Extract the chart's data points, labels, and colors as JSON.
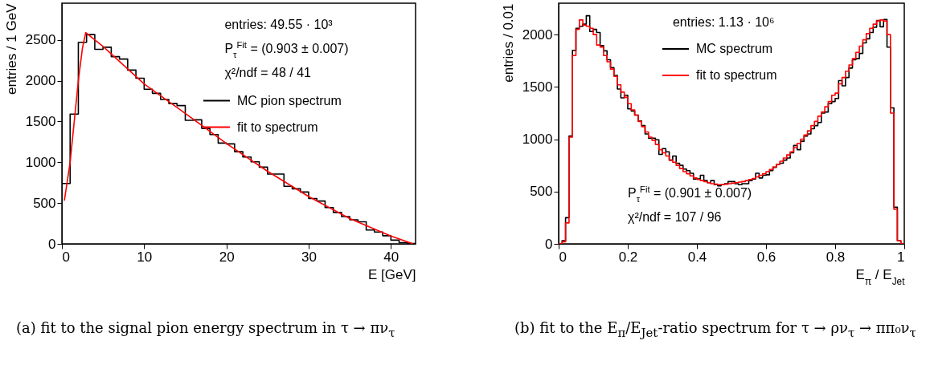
{
  "chart_data": [
    {
      "type": "histogram",
      "xlabel": "E [GeV]",
      "ylabel": "entries / 1 GeV",
      "bins": [
        0,
        1,
        2,
        3,
        4,
        5,
        6,
        7,
        8,
        9,
        10,
        11,
        12,
        13,
        14,
        15,
        16,
        17,
        18,
        19,
        20,
        21,
        22,
        23,
        24,
        25,
        26,
        27,
        28,
        29,
        30,
        31,
        32,
        33,
        34,
        35,
        36,
        37,
        38,
        39,
        40,
        41,
        42,
        43
      ],
      "series": [
        {
          "name": "MC pion spectrum",
          "color": "#000000",
          "values": [
            740,
            1590,
            2470,
            2565,
            2385,
            2410,
            2295,
            2265,
            2130,
            2030,
            1895,
            1845,
            1770,
            1720,
            1695,
            1515,
            1520,
            1415,
            1340,
            1235,
            1225,
            1130,
            1065,
            1005,
            940,
            855,
            855,
            705,
            675,
            635,
            555,
            525,
            445,
            385,
            335,
            295,
            270,
            170,
            145,
            100,
            45,
            15,
            5
          ]
        },
        {
          "name": "fit to spectrum",
          "color": "#ff0000",
          "type": "line",
          "x": [
            0.3,
            1,
            2,
            2.5,
            2.9,
            5,
            10,
            15,
            20,
            25,
            30,
            35,
            40,
            42.7
          ],
          "values": [
            530,
            1000,
            2000,
            2400,
            2590,
            2420,
            1960,
            1600,
            1230,
            890,
            580,
            310,
            95,
            0
          ]
        }
      ],
      "xlim": [
        0,
        43
      ],
      "ylim": [
        0,
        2950
      ],
      "xticks": [
        0,
        10,
        20,
        30,
        40
      ],
      "yticks": [
        0,
        500,
        1000,
        1500,
        2000,
        2500
      ],
      "grid": false,
      "legend": "top right",
      "annotations": [
        "entries: 49.55 · 10³",
        "P$_{τ}$$^{Fit}$ = (0.903 ± 0.007)",
        "χ²/ndf =   48 /   41",
        "(a) fit to the signal pion energy spectrum in τ → πν$_{τ}$"
      ]
    },
    {
      "type": "histogram",
      "xlabel": "E$_{π}$ / E$_{Jet}$",
      "ylabel": "entries / 0.01",
      "bins": [
        0,
        0.01,
        0.02,
        0.03,
        0.04,
        0.05,
        0.06,
        0.07,
        0.08,
        0.09,
        0.1,
        0.11,
        0.12,
        0.13,
        0.14,
        0.15,
        0.16,
        0.17,
        0.18,
        0.19,
        0.2,
        0.21,
        0.22,
        0.23,
        0.24,
        0.25,
        0.26,
        0.27,
        0.28,
        0.29,
        0.3,
        0.31,
        0.32,
        0.33,
        0.34,
        0.35,
        0.36,
        0.37,
        0.38,
        0.39,
        0.4,
        0.41,
        0.42,
        0.43,
        0.44,
        0.45,
        0.46,
        0.47,
        0.48,
        0.49,
        0.5,
        0.51,
        0.52,
        0.53,
        0.54,
        0.55,
        0.56,
        0.57,
        0.58,
        0.59,
        0.6,
        0.61,
        0.62,
        0.63,
        0.64,
        0.65,
        0.66,
        0.67,
        0.68,
        0.69,
        0.7,
        0.71,
        0.72,
        0.73,
        0.74,
        0.75,
        0.76,
        0.77,
        0.78,
        0.79,
        0.8,
        0.81,
        0.82,
        0.83,
        0.84,
        0.85,
        0.86,
        0.87,
        0.88,
        0.89,
        0.9,
        0.91,
        0.92,
        0.93,
        0.94,
        0.95,
        0.96,
        0.97,
        0.98,
        0.99,
        1
      ],
      "series": [
        {
          "name": "MC spectrum",
          "color": "#000000",
          "values": [
            0,
            30,
            250,
            1030,
            1850,
            2060,
            2080,
            2100,
            2180,
            2030,
            2050,
            2020,
            1895,
            1845,
            1760,
            1685,
            1610,
            1480,
            1395,
            1420,
            1290,
            1270,
            1230,
            1175,
            1130,
            1050,
            1010,
            1010,
            995,
            855,
            910,
            880,
            800,
            840,
            770,
            750,
            715,
            700,
            675,
            620,
            620,
            655,
            605,
            585,
            605,
            565,
            555,
            565,
            575,
            595,
            595,
            575,
            565,
            575,
            575,
            605,
            620,
            675,
            630,
            655,
            660,
            700,
            730,
            760,
            770,
            800,
            820,
            870,
            940,
            900,
            980,
            1030,
            1050,
            1100,
            1130,
            1160,
            1250,
            1260,
            1340,
            1360,
            1390,
            1560,
            1510,
            1590,
            1680,
            1760,
            1770,
            1820,
            1920,
            1960,
            2020,
            2070,
            2135,
            2075,
            2145,
            1880,
            1300,
            350,
            30,
            0
          ]
        },
        {
          "name": "fit to spectrum",
          "color": "#ff0000",
          "values": [
            0,
            20,
            200,
            1020,
            1800,
            2050,
            2140,
            2090,
            2080,
            2060,
            2000,
            1900,
            1880,
            1800,
            1740,
            1670,
            1600,
            1520,
            1450,
            1400,
            1340,
            1280,
            1230,
            1170,
            1120,
            1070,
            1020,
            990,
            950,
            900,
            870,
            840,
            800,
            780,
            750,
            720,
            690,
            670,
            650,
            630,
            615,
            605,
            595,
            585,
            575,
            570,
            565,
            565,
            570,
            575,
            580,
            585,
            590,
            595,
            605,
            615,
            625,
            640,
            655,
            670,
            690,
            710,
            735,
            760,
            790,
            820,
            850,
            880,
            920,
            960,
            1000,
            1040,
            1080,
            1130,
            1170,
            1220,
            1260,
            1310,
            1360,
            1420,
            1440,
            1530,
            1590,
            1650,
            1710,
            1770,
            1830,
            1890,
            1950,
            2010,
            2060,
            2100,
            2130,
            2140,
            2130,
            2000,
            1250,
            330,
            30,
            0
          ]
        }
      ],
      "xlim": [
        0,
        1
      ],
      "ylim": [
        0,
        2300
      ],
      "xticks": [
        0,
        0.2,
        0.4,
        0.6,
        0.8,
        1
      ],
      "yticks": [
        0,
        500,
        1000,
        1500,
        2000
      ],
      "grid": false,
      "legend": "top",
      "annotations": [
        "entries: 1.13 · 10⁶",
        "P$_{τ}$$^{Fit}$ = (0.901 ± 0.007)",
        "χ²/ndf =  107 /  96",
        "(b) fit to the E$_{π}$/E$_{Jet}$-ratio spectrum for τ → ρν$_{τ}$ → ππ₀ν$_{τ}$"
      ]
    }
  ]
}
